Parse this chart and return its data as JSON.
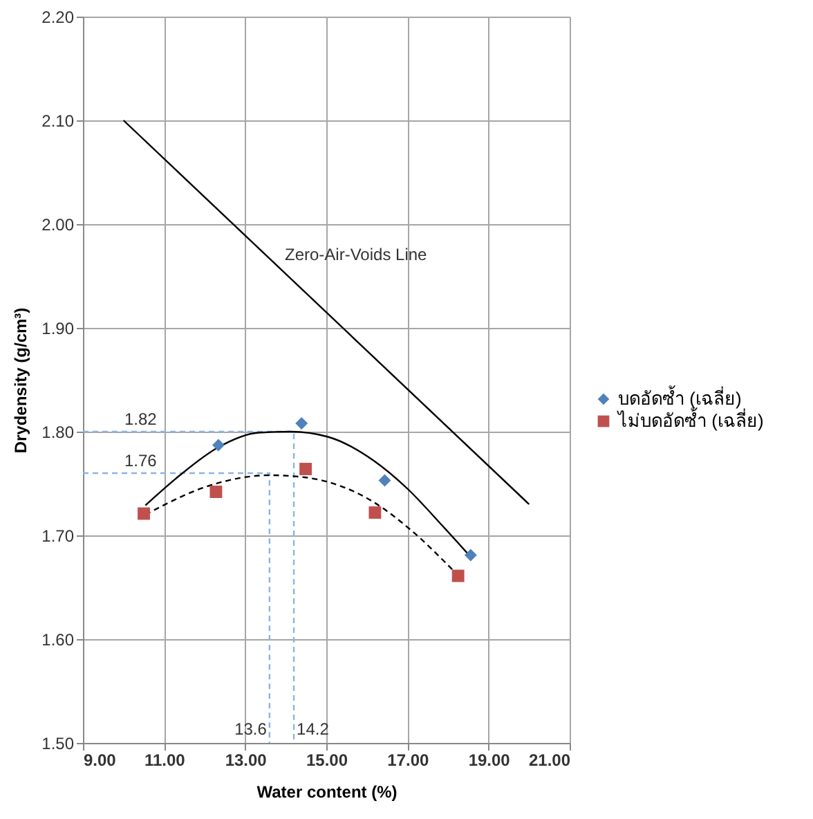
{
  "chart_data": {
    "type": "scatter",
    "xlabel": "Water content (%)",
    "ylabel": "Drydensity (g/cm³)",
    "xlim": [
      9,
      21
    ],
    "xticks": [
      {
        "value": 9,
        "label": "9.00"
      },
      {
        "value": 11,
        "label": "11.00"
      },
      {
        "value": 13,
        "label": "13.00"
      },
      {
        "value": 15,
        "label": "15.00"
      },
      {
        "value": 17,
        "label": "17.00"
      },
      {
        "value": 19,
        "label": "19.00"
      },
      {
        "value": 21,
        "label": "21.00"
      }
    ],
    "ylim": [
      1.5,
      2.2
    ],
    "yticks": [
      {
        "value": 1.5,
        "label": "1.50"
      },
      {
        "value": 1.6,
        "label": "1.60"
      },
      {
        "value": 1.7,
        "label": "1.70"
      },
      {
        "value": 1.8,
        "label": "1.80"
      },
      {
        "value": 1.9,
        "label": "1.90"
      },
      {
        "value": 2.0,
        "label": "2.00"
      },
      {
        "value": 2.1,
        "label": "2.10"
      },
      {
        "value": 2.2,
        "label": "2.20"
      }
    ],
    "grid": true,
    "legend": "right",
    "series": [
      {
        "type": "line",
        "name": "Zero-Air-Voids Line",
        "color": "#000000",
        "line_style": "solid",
        "x": [
          10,
          20
        ],
        "values": [
          2.1,
          1.73
        ]
      },
      {
        "type": "line",
        "color": "#8db3e2",
        "line_style": "dashed",
        "x": [
          9,
          14.2,
          14.2
        ],
        "values": [
          1.8,
          1.8,
          1.5
        ]
      },
      {
        "type": "line",
        "color": "#8db3e2",
        "line_style": "dashed",
        "x": [
          9,
          13.6,
          13.6
        ],
        "values": [
          1.76,
          1.76,
          1.5
        ]
      },
      {
        "type": "line",
        "color": "#000000",
        "line_style": "solid",
        "x": [
          10.54,
          11.39,
          12.34,
          13.33,
          14.12,
          15.04,
          16.17,
          17.0,
          17.87,
          18.52
        ],
        "values": [
          1.729,
          1.758,
          1.785,
          1.799,
          1.8,
          1.795,
          1.772,
          1.745,
          1.709,
          1.681
        ]
      },
      {
        "type": "line",
        "color": "#000000",
        "line_style": "dashed",
        "x": [
          10.54,
          12.2,
          13.6,
          14.46,
          16.17,
          17.09,
          18.11
        ],
        "values": [
          1.72,
          1.749,
          1.758,
          1.756,
          1.732,
          1.705,
          1.667
        ]
      },
      {
        "name": "บดอัดซ้ำ (เฉลี่ย)",
        "color": "#4f81bd",
        "marker": "diamond",
        "x": [
          12.34,
          14.39,
          16.44,
          18.56
        ],
        "values": [
          1.787,
          1.808,
          1.753,
          1.681
        ]
      },
      {
        "name": "ไม่บดอัดซ้ำ (เฉลี่ย)",
        "color": "#c0504d",
        "marker": "square",
        "x": [
          10.5,
          12.28,
          14.49,
          16.2,
          18.25
        ],
        "values": [
          1.721,
          1.742,
          1.764,
          1.722,
          1.661
        ]
      }
    ],
    "annotations": [
      {
        "text": "1.82",
        "x": 9,
        "y": 1.8
      },
      {
        "text": "1.76",
        "x": 9,
        "y": 1.76
      },
      {
        "text": "13.6",
        "x": 13.6,
        "y": 1.5
      },
      {
        "text": "14.2",
        "x": 14.2,
        "y": 1.5
      }
    ]
  }
}
